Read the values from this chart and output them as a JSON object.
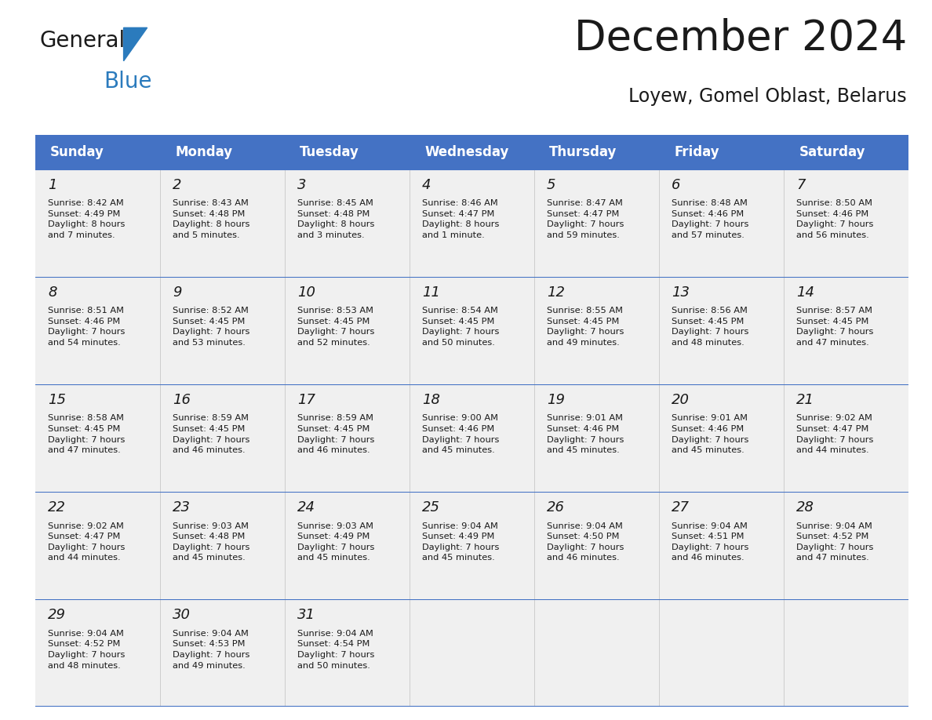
{
  "title": "December 2024",
  "subtitle": "Loyew, Gomel Oblast, Belarus",
  "header_color": "#4472C4",
  "header_text_color": "#FFFFFF",
  "cell_bg_color": "#F0F0F0",
  "line_color": "#4472C4",
  "separator_color": "#AAAAAA",
  "day_names": [
    "Sunday",
    "Monday",
    "Tuesday",
    "Wednesday",
    "Thursday",
    "Friday",
    "Saturday"
  ],
  "days": [
    {
      "day": 1,
      "col": 0,
      "row": 0,
      "sunrise": "8:42 AM",
      "sunset": "4:49 PM",
      "daylight_h": "8",
      "daylight_m": "7 minutes"
    },
    {
      "day": 2,
      "col": 1,
      "row": 0,
      "sunrise": "8:43 AM",
      "sunset": "4:48 PM",
      "daylight_h": "8",
      "daylight_m": "5 minutes"
    },
    {
      "day": 3,
      "col": 2,
      "row": 0,
      "sunrise": "8:45 AM",
      "sunset": "4:48 PM",
      "daylight_h": "8",
      "daylight_m": "3 minutes"
    },
    {
      "day": 4,
      "col": 3,
      "row": 0,
      "sunrise": "8:46 AM",
      "sunset": "4:47 PM",
      "daylight_h": "8",
      "daylight_m": "1 minute"
    },
    {
      "day": 5,
      "col": 4,
      "row": 0,
      "sunrise": "8:47 AM",
      "sunset": "4:47 PM",
      "daylight_h": "7",
      "daylight_m": "59 minutes"
    },
    {
      "day": 6,
      "col": 5,
      "row": 0,
      "sunrise": "8:48 AM",
      "sunset": "4:46 PM",
      "daylight_h": "7",
      "daylight_m": "57 minutes"
    },
    {
      "day": 7,
      "col": 6,
      "row": 0,
      "sunrise": "8:50 AM",
      "sunset": "4:46 PM",
      "daylight_h": "7",
      "daylight_m": "56 minutes"
    },
    {
      "day": 8,
      "col": 0,
      "row": 1,
      "sunrise": "8:51 AM",
      "sunset": "4:46 PM",
      "daylight_h": "7",
      "daylight_m": "54 minutes"
    },
    {
      "day": 9,
      "col": 1,
      "row": 1,
      "sunrise": "8:52 AM",
      "sunset": "4:45 PM",
      "daylight_h": "7",
      "daylight_m": "53 minutes"
    },
    {
      "day": 10,
      "col": 2,
      "row": 1,
      "sunrise": "8:53 AM",
      "sunset": "4:45 PM",
      "daylight_h": "7",
      "daylight_m": "52 minutes"
    },
    {
      "day": 11,
      "col": 3,
      "row": 1,
      "sunrise": "8:54 AM",
      "sunset": "4:45 PM",
      "daylight_h": "7",
      "daylight_m": "50 minutes"
    },
    {
      "day": 12,
      "col": 4,
      "row": 1,
      "sunrise": "8:55 AM",
      "sunset": "4:45 PM",
      "daylight_h": "7",
      "daylight_m": "49 minutes"
    },
    {
      "day": 13,
      "col": 5,
      "row": 1,
      "sunrise": "8:56 AM",
      "sunset": "4:45 PM",
      "daylight_h": "7",
      "daylight_m": "48 minutes"
    },
    {
      "day": 14,
      "col": 6,
      "row": 1,
      "sunrise": "8:57 AM",
      "sunset": "4:45 PM",
      "daylight_h": "7",
      "daylight_m": "47 minutes"
    },
    {
      "day": 15,
      "col": 0,
      "row": 2,
      "sunrise": "8:58 AM",
      "sunset": "4:45 PM",
      "daylight_h": "7",
      "daylight_m": "47 minutes"
    },
    {
      "day": 16,
      "col": 1,
      "row": 2,
      "sunrise": "8:59 AM",
      "sunset": "4:45 PM",
      "daylight_h": "7",
      "daylight_m": "46 minutes"
    },
    {
      "day": 17,
      "col": 2,
      "row": 2,
      "sunrise": "8:59 AM",
      "sunset": "4:45 PM",
      "daylight_h": "7",
      "daylight_m": "46 minutes"
    },
    {
      "day": 18,
      "col": 3,
      "row": 2,
      "sunrise": "9:00 AM",
      "sunset": "4:46 PM",
      "daylight_h": "7",
      "daylight_m": "45 minutes"
    },
    {
      "day": 19,
      "col": 4,
      "row": 2,
      "sunrise": "9:01 AM",
      "sunset": "4:46 PM",
      "daylight_h": "7",
      "daylight_m": "45 minutes"
    },
    {
      "day": 20,
      "col": 5,
      "row": 2,
      "sunrise": "9:01 AM",
      "sunset": "4:46 PM",
      "daylight_h": "7",
      "daylight_m": "45 minutes"
    },
    {
      "day": 21,
      "col": 6,
      "row": 2,
      "sunrise": "9:02 AM",
      "sunset": "4:47 PM",
      "daylight_h": "7",
      "daylight_m": "44 minutes"
    },
    {
      "day": 22,
      "col": 0,
      "row": 3,
      "sunrise": "9:02 AM",
      "sunset": "4:47 PM",
      "daylight_h": "7",
      "daylight_m": "44 minutes"
    },
    {
      "day": 23,
      "col": 1,
      "row": 3,
      "sunrise": "9:03 AM",
      "sunset": "4:48 PM",
      "daylight_h": "7",
      "daylight_m": "45 minutes"
    },
    {
      "day": 24,
      "col": 2,
      "row": 3,
      "sunrise": "9:03 AM",
      "sunset": "4:49 PM",
      "daylight_h": "7",
      "daylight_m": "45 minutes"
    },
    {
      "day": 25,
      "col": 3,
      "row": 3,
      "sunrise": "9:04 AM",
      "sunset": "4:49 PM",
      "daylight_h": "7",
      "daylight_m": "45 minutes"
    },
    {
      "day": 26,
      "col": 4,
      "row": 3,
      "sunrise": "9:04 AM",
      "sunset": "4:50 PM",
      "daylight_h": "7",
      "daylight_m": "46 minutes"
    },
    {
      "day": 27,
      "col": 5,
      "row": 3,
      "sunrise": "9:04 AM",
      "sunset": "4:51 PM",
      "daylight_h": "7",
      "daylight_m": "46 minutes"
    },
    {
      "day": 28,
      "col": 6,
      "row": 3,
      "sunrise": "9:04 AM",
      "sunset": "4:52 PM",
      "daylight_h": "7",
      "daylight_m": "47 minutes"
    },
    {
      "day": 29,
      "col": 0,
      "row": 4,
      "sunrise": "9:04 AM",
      "sunset": "4:52 PM",
      "daylight_h": "7",
      "daylight_m": "48 minutes"
    },
    {
      "day": 30,
      "col": 1,
      "row": 4,
      "sunrise": "9:04 AM",
      "sunset": "4:53 PM",
      "daylight_h": "7",
      "daylight_m": "49 minutes"
    },
    {
      "day": 31,
      "col": 2,
      "row": 4,
      "sunrise": "9:04 AM",
      "sunset": "4:54 PM",
      "daylight_h": "7",
      "daylight_m": "50 minutes"
    }
  ],
  "logo_color1": "#1a1a1a",
  "logo_color2": "#2B7BBD",
  "logo_triangle_color": "#2B7BBD",
  "title_color": "#1a1a1a",
  "subtitle_color": "#1a1a1a"
}
